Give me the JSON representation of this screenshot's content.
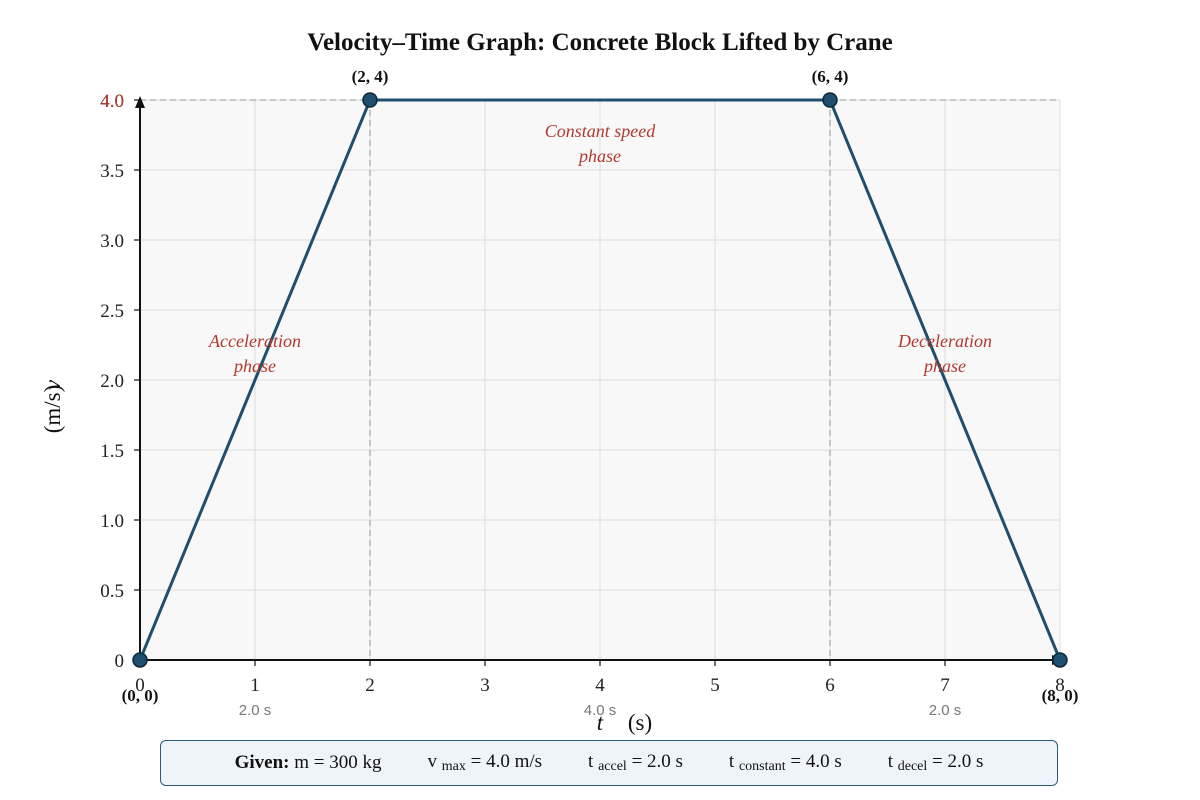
{
  "chart_data": {
    "type": "line",
    "title": "Velocity–Time Graph: Concrete Block Lifted by Crane",
    "xlabel_var": "t",
    "xlabel_unit": "(s)",
    "ylabel_var": "v",
    "ylabel_unit": "(m/s)",
    "xlim": [
      0,
      8
    ],
    "ylim": [
      0,
      4
    ],
    "x_ticks": [
      "0",
      "1",
      "2",
      "3",
      "4",
      "5",
      "6",
      "7",
      "8"
    ],
    "y_ticks": [
      "0",
      "0.5",
      "1.0",
      "1.5",
      "2.0",
      "2.5",
      "3.0",
      "3.5",
      "4.0"
    ],
    "y_top_label_overlay": "4.0",
    "grid": true,
    "colors": {
      "line": "#1f4e6e",
      "phase": "#b03a2e",
      "plot_bg": "#f8f8f8",
      "grid": "#dddddd"
    },
    "series": [
      {
        "x": [
          0,
          2,
          6,
          8
        ],
        "y": [
          0,
          4,
          4,
          0
        ]
      }
    ],
    "points": [
      {
        "x": 0,
        "y": 0,
        "label": "(0, 0)"
      },
      {
        "x": 2,
        "y": 4,
        "label": "(2, 4)"
      },
      {
        "x": 6,
        "y": 4,
        "label": "(6, 4)"
      },
      {
        "x": 8,
        "y": 0,
        "label": "(8, 0)"
      }
    ],
    "phases": [
      {
        "line1": "Acceleration",
        "line2": "phase",
        "x": 1,
        "y": 2.2
      },
      {
        "line1": "Constant speed",
        "line2": "phase",
        "x": 4,
        "y": 3.7
      },
      {
        "line1": "Deceleration",
        "line2": "phase",
        "x": 7,
        "y": 2.2
      }
    ],
    "durations": [
      {
        "x": 1,
        "label": "2.0 s"
      },
      {
        "x": 4,
        "label": "4.0 s"
      },
      {
        "x": 7,
        "label": "2.0 s"
      }
    ]
  },
  "given": {
    "heading": "Given:",
    "mass": "m = 300 kg",
    "vmax_pre": "v",
    "vmax_sub": "max",
    "vmax_post": "= 4.0 m/s",
    "taccel_pre": "t",
    "taccel_sub": "accel",
    "taccel_post": "= 2.0 s",
    "tconst_pre": "t",
    "tconst_sub": "constant",
    "tconst_post": "= 4.0 s",
    "tdecel_pre": "t",
    "tdecel_sub": "decel",
    "tdecel_post": "= 2.0 s"
  }
}
